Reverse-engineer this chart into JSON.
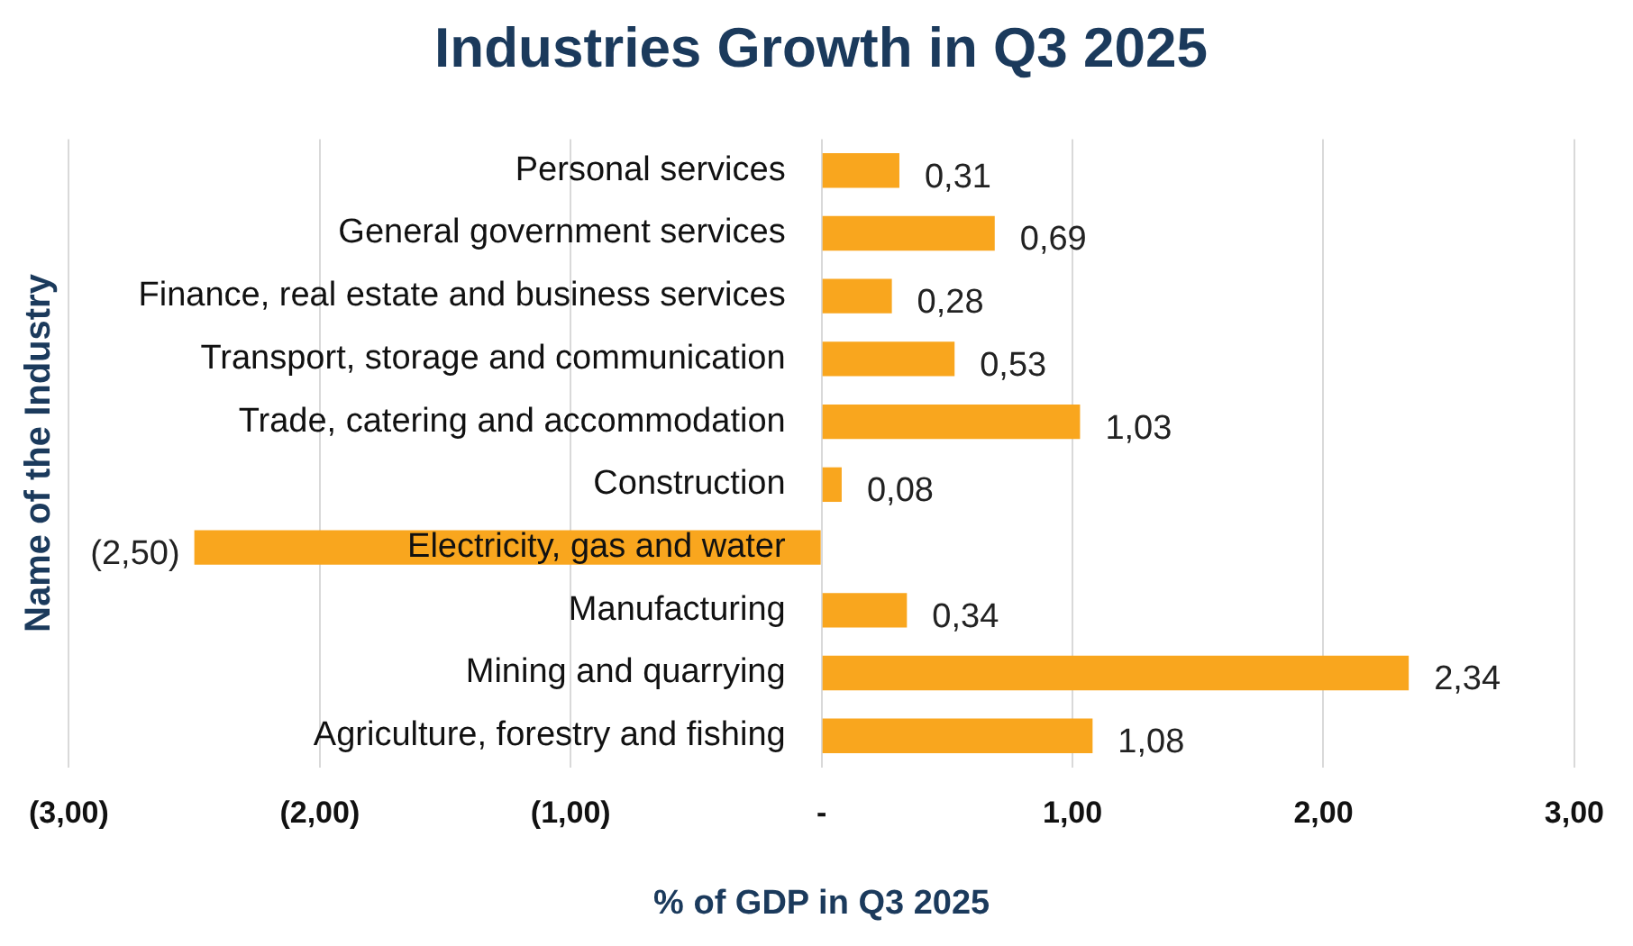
{
  "chart_data": {
    "type": "bar",
    "orientation": "horizontal",
    "title": "Industries Growth in Q3 2025",
    "xlabel": "% of GDP in Q3 2025",
    "ylabel": "Name of the Industry",
    "categories": [
      "Personal services",
      "General government services",
      "Finance, real estate and business services",
      "Transport, storage and communication",
      "Trade, catering and accommodation",
      "Construction",
      "Electricity, gas and water",
      "Manufacturing",
      "Mining and quarrying",
      "Agriculture, forestry and fishing"
    ],
    "values": [
      0.31,
      0.69,
      0.28,
      0.53,
      1.03,
      0.08,
      -2.5,
      0.34,
      2.34,
      1.08
    ],
    "value_labels": [
      "0,31",
      "0,69",
      "0,28",
      "0,53",
      "1,03",
      "0,08",
      "(2,50)",
      "0,34",
      "2,34",
      "1,08"
    ],
    "color": "#f9a61e",
    "xlim": [
      -3,
      3
    ],
    "xticks": [
      {
        "value": -3,
        "label": "(3,00)"
      },
      {
        "value": -2,
        "label": "(2,00)"
      },
      {
        "value": -1,
        "label": "(1,00)"
      },
      {
        "value": 0,
        "label": "-"
      },
      {
        "value": 1,
        "label": "1,00"
      },
      {
        "value": 2,
        "label": "2,00"
      },
      {
        "value": 3,
        "label": "3,00"
      }
    ],
    "grid": "x",
    "legend": false
  }
}
